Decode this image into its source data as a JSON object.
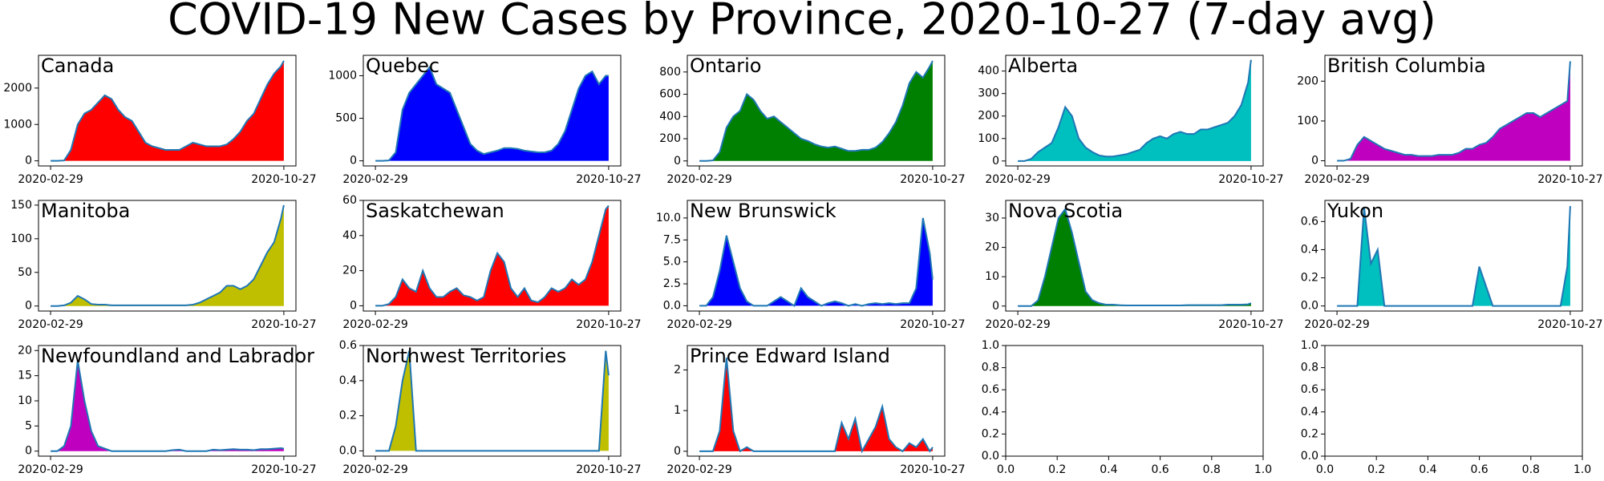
{
  "chart_data": {
    "type": "area",
    "title": "COVID-19 New Cases by Province, 2020-10-27 (7-day avg)",
    "line_color": "#1f77b4",
    "x": [
      "2020-02-29",
      "2020-03-07",
      "2020-03-14",
      "2020-03-21",
      "2020-03-28",
      "2020-04-04",
      "2020-04-11",
      "2020-04-18",
      "2020-04-25",
      "2020-05-02",
      "2020-05-09",
      "2020-05-16",
      "2020-05-23",
      "2020-05-30",
      "2020-06-06",
      "2020-06-13",
      "2020-06-20",
      "2020-06-27",
      "2020-07-04",
      "2020-07-11",
      "2020-07-18",
      "2020-07-25",
      "2020-08-01",
      "2020-08-08",
      "2020-08-15",
      "2020-08-22",
      "2020-08-29",
      "2020-09-05",
      "2020-09-12",
      "2020-09-19",
      "2020-09-26",
      "2020-10-03",
      "2020-10-10",
      "2020-10-17",
      "2020-10-24",
      "2020-10-27"
    ],
    "xlim": [
      "2020-02-29",
      "2020-10-27"
    ],
    "xticks": [
      "2020-02-29",
      "2020-10-27"
    ],
    "panels": [
      {
        "name": "Canada",
        "color": "#ff0000",
        "ylim": [
          -140,
          2900
        ],
        "yticks": [
          0,
          1000,
          2000
        ],
        "values": [
          0,
          0,
          10,
          300,
          1000,
          1300,
          1400,
          1600,
          1800,
          1700,
          1400,
          1200,
          1100,
          800,
          500,
          400,
          350,
          300,
          300,
          300,
          400,
          500,
          450,
          400,
          400,
          400,
          450,
          600,
          800,
          1100,
          1300,
          1700,
          2100,
          2400,
          2600,
          2750
        ]
      },
      {
        "name": "Quebec",
        "color": "#0000ff",
        "ylim": [
          -60,
          1240
        ],
        "yticks": [
          0,
          500,
          1000
        ],
        "values": [
          0,
          0,
          5,
          100,
          600,
          800,
          900,
          1000,
          1100,
          900,
          850,
          800,
          600,
          400,
          200,
          120,
          80,
          100,
          120,
          150,
          150,
          140,
          120,
          110,
          100,
          100,
          120,
          200,
          350,
          600,
          850,
          1000,
          1050,
          900,
          1000,
          1000
        ]
      },
      {
        "name": "Ontario",
        "color": "#008000",
        "ylim": [
          -45,
          950
        ],
        "yticks": [
          0,
          200,
          400,
          600,
          800
        ],
        "values": [
          0,
          0,
          5,
          80,
          300,
          400,
          450,
          600,
          550,
          450,
          380,
          400,
          350,
          300,
          250,
          200,
          180,
          150,
          130,
          120,
          130,
          110,
          90,
          90,
          100,
          100,
          120,
          170,
          250,
          350,
          500,
          700,
          800,
          750,
          850,
          900
        ]
      },
      {
        "name": "Alberta",
        "color": "#00bfbf",
        "ylim": [
          -22,
          470
        ],
        "yticks": [
          0,
          100,
          200,
          300,
          400
        ],
        "values": [
          0,
          0,
          10,
          40,
          60,
          80,
          150,
          240,
          200,
          100,
          60,
          40,
          25,
          20,
          20,
          25,
          30,
          40,
          50,
          80,
          100,
          110,
          100,
          120,
          130,
          120,
          120,
          140,
          140,
          150,
          160,
          170,
          200,
          250,
          350,
          450
        ]
      },
      {
        "name": "British Columbia",
        "color": "#bf00bf",
        "ylim": [
          -13,
          265
        ],
        "yticks": [
          0,
          100,
          200
        ],
        "values": [
          0,
          0,
          5,
          40,
          60,
          50,
          40,
          30,
          25,
          20,
          15,
          15,
          12,
          12,
          12,
          15,
          15,
          15,
          20,
          30,
          30,
          40,
          45,
          60,
          80,
          90,
          100,
          110,
          120,
          120,
          110,
          120,
          130,
          140,
          150,
          250
        ]
      },
      {
        "name": "Manitoba",
        "color": "#bfbf00",
        "ylim": [
          -7.5,
          157
        ],
        "yticks": [
          0,
          50,
          100,
          150
        ],
        "values": [
          0,
          0,
          1,
          5,
          15,
          10,
          3,
          2,
          2,
          1,
          1,
          1,
          1,
          1,
          1,
          1,
          1,
          1,
          1,
          1,
          1,
          2,
          5,
          10,
          15,
          20,
          30,
          30,
          25,
          30,
          40,
          60,
          80,
          95,
          130,
          150
        ]
      },
      {
        "name": "Saskatchewan",
        "color": "#ff0000",
        "ylim": [
          -3,
          60
        ],
        "yticks": [
          0,
          20,
          40,
          60
        ],
        "values": [
          0,
          0,
          1,
          5,
          15,
          10,
          8,
          20,
          10,
          5,
          5,
          8,
          10,
          6,
          5,
          3,
          5,
          20,
          30,
          25,
          10,
          5,
          10,
          3,
          2,
          5,
          10,
          8,
          10,
          15,
          12,
          15,
          25,
          40,
          55,
          57
        ]
      },
      {
        "name": "New Brunswick",
        "color": "#0000ff",
        "ylim": [
          -0.6,
          12
        ],
        "yticks": [
          {
            "value": 0,
            "label": "0.0"
          },
          2.5,
          {
            "value": 5,
            "label": "5.0"
          },
          7.5,
          {
            "value": 10,
            "label": "10.0"
          }
        ],
        "values": [
          0,
          0,
          1,
          4,
          8,
          5,
          2,
          0.5,
          0,
          0,
          0,
          0.5,
          1,
          0.5,
          0,
          2,
          1,
          0.5,
          0,
          0.3,
          0.5,
          0.3,
          0,
          0.2,
          0,
          0.2,
          0.3,
          0.2,
          0.3,
          0.2,
          0.3,
          0.3,
          2,
          10,
          6,
          3
        ]
      },
      {
        "name": "Nova Scotia",
        "color": "#008000",
        "ylim": [
          -1.7,
          36
        ],
        "yticks": [
          0,
          10,
          20,
          30
        ],
        "values": [
          0,
          0,
          0,
          2,
          10,
          20,
          30,
          33,
          25,
          15,
          5,
          2,
          1,
          0.5,
          0.5,
          0.3,
          0.2,
          0.2,
          0.2,
          0.2,
          0.2,
          0.2,
          0.2,
          0.2,
          0.2,
          0.3,
          0.3,
          0.3,
          0.3,
          0.3,
          0.3,
          0.5,
          0.5,
          0.5,
          0.6,
          1
        ]
      },
      {
        "name": "Yukon",
        "color": "#00bfbf",
        "ylim": [
          -0.036,
          0.75
        ],
        "yticks": [
          {
            "value": 0,
            "label": "0.0"
          },
          0.2,
          0.4,
          0.6
        ],
        "values": [
          0,
          0,
          0,
          0,
          0.7,
          0.3,
          0.4,
          0,
          0,
          0,
          0,
          0,
          0,
          0,
          0,
          0,
          0,
          0,
          0,
          0,
          0,
          0.28,
          0.14,
          0,
          0,
          0,
          0,
          0,
          0,
          0,
          0,
          0,
          0,
          0,
          0.28,
          0.71
        ]
      },
      {
        "name": "Newfoundland and Labrador",
        "color": "#bf00bf",
        "ylim": [
          -1,
          21
        ],
        "yticks": [
          0,
          5,
          10,
          15,
          20
        ],
        "values": [
          0,
          0,
          1,
          5,
          18,
          10,
          4,
          1,
          0.5,
          0,
          0,
          0,
          0,
          0,
          0,
          0,
          0,
          0,
          0.2,
          0.3,
          0,
          0,
          0,
          0,
          0.3,
          0.2,
          0.3,
          0.4,
          0.3,
          0.3,
          0.2,
          0.4,
          0.4,
          0.5,
          0.6,
          0.5
        ]
      },
      {
        "name": "Northwest Territories",
        "color": "#bfbf00",
        "ylim": [
          -0.03,
          0.6
        ],
        "yticks": [
          {
            "value": 0,
            "label": "0.0"
          },
          0.2,
          0.4,
          0.6
        ],
        "values": [
          0,
          0,
          0,
          0.14,
          0.4,
          0.57,
          0,
          0,
          0,
          0,
          0,
          0,
          0,
          0,
          0,
          0,
          0,
          0,
          0,
          0,
          0,
          0,
          0,
          0,
          0,
          0,
          0,
          0,
          0,
          0,
          0,
          0,
          0,
          0,
          0.57,
          0.43
        ]
      },
      {
        "name": "Prince Edward Island",
        "color": "#ff0000",
        "ylim": [
          -0.12,
          2.6
        ],
        "yticks": [
          0,
          1,
          2
        ],
        "values": [
          0,
          0,
          0,
          0.5,
          2.3,
          0.5,
          0,
          0.1,
          0,
          0,
          0,
          0,
          0,
          0,
          0,
          0,
          0,
          0,
          0,
          0,
          0,
          0.7,
          0.3,
          0.8,
          0,
          0.3,
          0.6,
          1.1,
          0.3,
          0.1,
          0,
          0.2,
          0.1,
          0.3,
          0,
          0.1
        ]
      },
      {
        "xlim": [
          0,
          1
        ],
        "ylim": [
          0,
          1
        ],
        "xticks": [
          {
            "value": 0,
            "label": "0.0"
          },
          0.2,
          0.4,
          0.6,
          0.8,
          {
            "value": 1,
            "label": "1.0"
          }
        ],
        "yticks": [
          {
            "value": 0,
            "label": "0.0"
          },
          0.2,
          0.4,
          0.6,
          0.8,
          {
            "value": 1,
            "label": "1.0"
          }
        ]
      },
      {
        "xlim": [
          0,
          1
        ],
        "ylim": [
          0,
          1
        ],
        "xticks": [
          {
            "value": 0,
            "label": "0.0"
          },
          0.2,
          0.4,
          0.6,
          0.8,
          {
            "value": 1,
            "label": "1.0"
          }
        ],
        "yticks": [
          {
            "value": 0,
            "label": "0.0"
          },
          0.2,
          0.4,
          0.6,
          0.8,
          {
            "value": 1,
            "label": "1.0"
          }
        ]
      }
    ]
  }
}
